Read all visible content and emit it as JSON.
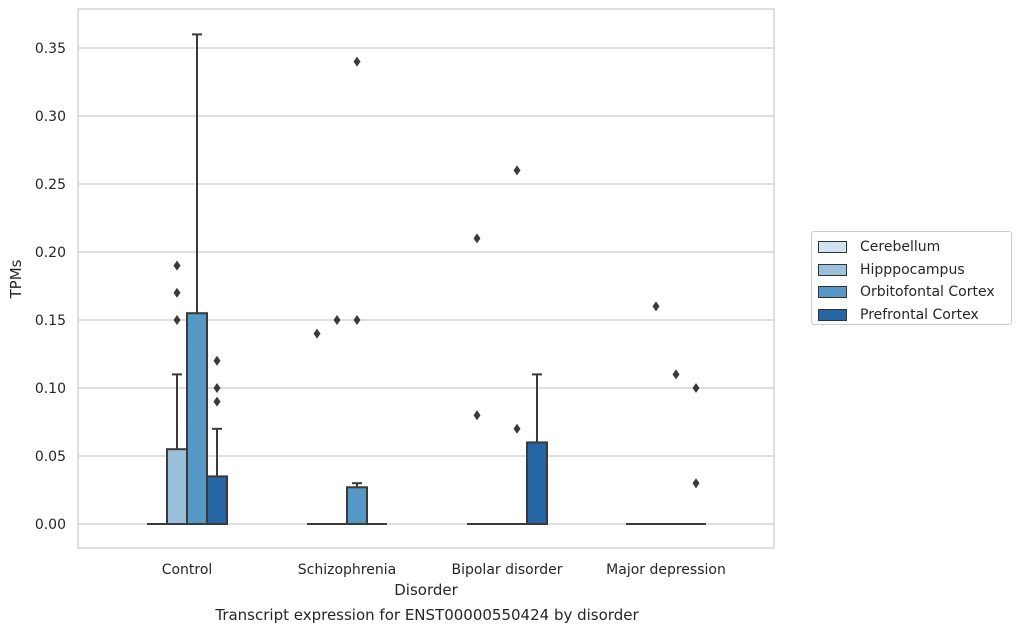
{
  "caption": "Transcript expression for ENST00000550424 by disorder",
  "chart_data": {
    "type": "boxplot",
    "xlabel": "Disorder",
    "ylabel": "TPMs",
    "ylim": [
      -0.018,
      0.38
    ],
    "yticks": [
      0.0,
      0.05,
      0.1,
      0.15,
      0.2,
      0.25,
      0.3,
      0.35
    ],
    "ytick_labels": [
      "0.00",
      "0.05",
      "0.10",
      "0.15",
      "0.20",
      "0.25",
      "0.30",
      "0.35"
    ],
    "grid": "horizontal",
    "legend_position": "right",
    "categories": [
      "Control",
      "Schizophrenia",
      "Bipolar disorder",
      "Major depression"
    ],
    "series": [
      {
        "name": "Cerebellum",
        "color": "#d1e2f2",
        "boxes": [
          {
            "q1": 0,
            "median": 0,
            "q3": 0,
            "whisker_low": 0,
            "whisker_high": 0,
            "outliers": []
          },
          {
            "q1": 0,
            "median": 0,
            "q3": 0,
            "whisker_low": 0,
            "whisker_high": 0,
            "outliers": [
              0.14
            ]
          },
          {
            "q1": 0,
            "median": 0,
            "q3": 0,
            "whisker_low": 0,
            "whisker_high": 0,
            "outliers": [
              0.08,
              0.21
            ]
          },
          {
            "q1": 0,
            "median": 0,
            "q3": 0,
            "whisker_low": 0,
            "whisker_high": 0,
            "outliers": []
          }
        ]
      },
      {
        "name": "Hipppocampus",
        "color": "#9ac1d9",
        "boxes": [
          {
            "q1": 0,
            "median": 0,
            "q3": 0.055,
            "whisker_low": 0,
            "whisker_high": 0.11,
            "outliers": [
              0.15,
              0.17,
              0.19
            ]
          },
          {
            "q1": 0,
            "median": 0,
            "q3": 0,
            "whisker_low": 0,
            "whisker_high": 0,
            "outliers": [
              0.15
            ]
          },
          {
            "q1": 0,
            "median": 0,
            "q3": 0,
            "whisker_low": 0,
            "whisker_high": 0,
            "outliers": []
          },
          {
            "q1": 0,
            "median": 0,
            "q3": 0,
            "whisker_low": 0,
            "whisker_high": 0,
            "outliers": [
              0.16
            ]
          }
        ]
      },
      {
        "name": "Orbitofontal Cortex",
        "color": "#5597c5",
        "boxes": [
          {
            "q1": 0,
            "median": 0,
            "q3": 0.155,
            "whisker_low": 0,
            "whisker_high": 0.36,
            "outliers": []
          },
          {
            "q1": 0,
            "median": 0,
            "q3": 0.027,
            "whisker_low": 0,
            "whisker_high": 0.03,
            "outliers": [
              0.15,
              0.34
            ]
          },
          {
            "q1": 0,
            "median": 0,
            "q3": 0,
            "whisker_low": 0,
            "whisker_high": 0,
            "outliers": [
              0.07,
              0.26
            ]
          },
          {
            "q1": 0,
            "median": 0,
            "q3": 0,
            "whisker_low": 0,
            "whisker_high": 0,
            "outliers": [
              0.11
            ]
          }
        ]
      },
      {
        "name": "Prefrontal Cortex",
        "color": "#2665a3",
        "boxes": [
          {
            "q1": 0,
            "median": 0,
            "q3": 0.035,
            "whisker_low": 0,
            "whisker_high": 0.07,
            "outliers": [
              0.09,
              0.1,
              0.12
            ]
          },
          {
            "q1": 0,
            "median": 0,
            "q3": 0,
            "whisker_low": 0,
            "whisker_high": 0,
            "outliers": []
          },
          {
            "q1": 0,
            "median": 0,
            "q3": 0.06,
            "whisker_low": 0,
            "whisker_high": 0.11,
            "outliers": []
          },
          {
            "q1": 0,
            "median": 0,
            "q3": 0,
            "whisker_low": 0,
            "whisker_high": 0,
            "outliers": [
              0.03,
              0.1
            ]
          }
        ]
      }
    ]
  }
}
